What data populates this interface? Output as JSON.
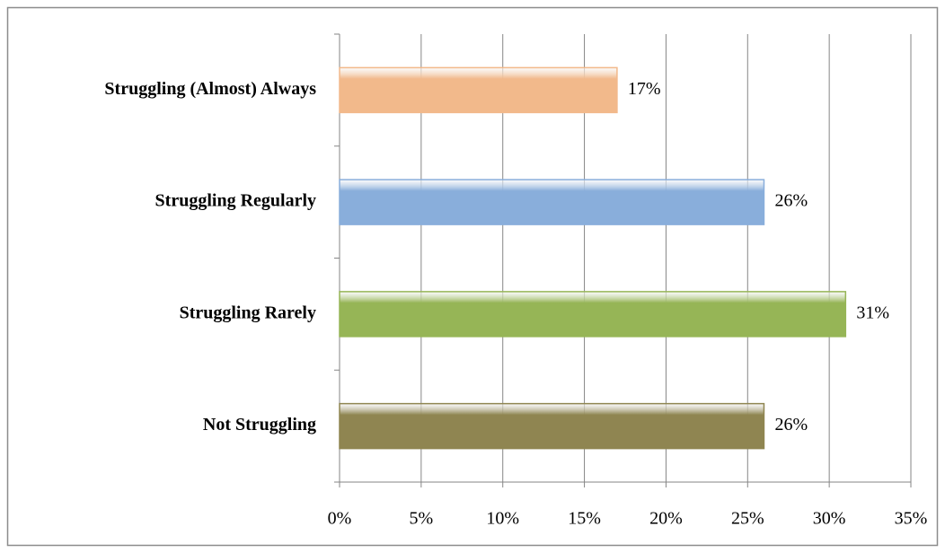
{
  "chart_data": {
    "type": "bar",
    "orientation": "horizontal",
    "categories": [
      "Struggling (Almost) Always",
      "Struggling Regularly",
      "Struggling Rarely",
      "Not Struggling"
    ],
    "values": [
      17,
      26,
      31,
      26
    ],
    "value_labels": [
      "17%",
      "26%",
      "31%",
      "26%"
    ],
    "colors": [
      "#f9bf8f",
      "#8db3e2",
      "#9bbb59",
      "#938953"
    ],
    "xlim": [
      0,
      35
    ],
    "xticks": [
      {
        "value": 0,
        "label": "0%"
      },
      {
        "value": 5,
        "label": "5%"
      },
      {
        "value": 10,
        "label": "10%"
      },
      {
        "value": 15,
        "label": "15%"
      },
      {
        "value": 20,
        "label": "20%"
      },
      {
        "value": 25,
        "label": "25%"
      },
      {
        "value": 30,
        "label": "30%"
      },
      {
        "value": 35,
        "label": "35%"
      }
    ],
    "grid": true
  }
}
